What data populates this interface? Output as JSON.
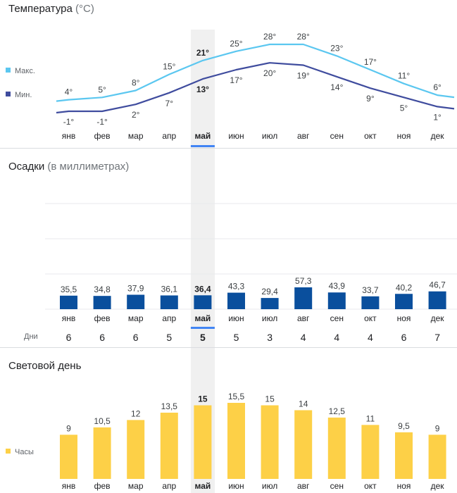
{
  "months": [
    "янв",
    "фев",
    "мар",
    "апр",
    "май",
    "июн",
    "июл",
    "авг",
    "сен",
    "окт",
    "ноя",
    "дек"
  ],
  "selected_index": 4,
  "colors": {
    "max_line": "#5bc7f0",
    "min_line": "#3f4c9e",
    "precip_bar": "#0a4f9d",
    "daylight_bar": "#fdd047",
    "highlight": "#f0f0f0",
    "selected_marker": "#4285f4",
    "text": "#202124",
    "muted": "#5f6368"
  },
  "temperature": {
    "title": "Температура",
    "unit": "(°C)",
    "legend_max": "Макс.",
    "legend_min": "Мин.",
    "max_labels": [
      "4°",
      "5°",
      "8°",
      "15°",
      "21°",
      "25°",
      "28°",
      "28°",
      "23°",
      "17°",
      "11°",
      "6°"
    ],
    "min_labels": [
      "-1°",
      "-1°",
      "2°",
      "7°",
      "13°",
      "17°",
      "20°",
      "19°",
      "14°",
      "9°",
      "5°",
      "1°"
    ]
  },
  "precipitation": {
    "title": "Осадки",
    "unit": "(в миллиметрах)",
    "labels": [
      "35,5",
      "34,8",
      "37,9",
      "36,1",
      "36,4",
      "43,3",
      "29,4",
      "57,3",
      "43,9",
      "33,7",
      "40,2",
      "46,7"
    ],
    "days_label": "Дни",
    "days": [
      "6",
      "6",
      "6",
      "5",
      "5",
      "5",
      "3",
      "4",
      "4",
      "4",
      "6",
      "7"
    ]
  },
  "daylight": {
    "title": "Световой день",
    "legend": "Часы",
    "labels": [
      "9",
      "10,5",
      "12",
      "13,5",
      "15",
      "15,5",
      "15",
      "14",
      "12,5",
      "11",
      "9,5",
      "9"
    ]
  },
  "chart_data": [
    {
      "type": "line",
      "title": "Температура (°C)",
      "categories": [
        "янв",
        "фев",
        "мар",
        "апр",
        "май",
        "июн",
        "июл",
        "авг",
        "сен",
        "окт",
        "ноя",
        "дек"
      ],
      "series": [
        {
          "name": "Макс.",
          "values": [
            4,
            5,
            8,
            15,
            21,
            25,
            28,
            28,
            23,
            17,
            11,
            6
          ]
        },
        {
          "name": "Мин.",
          "values": [
            -1,
            -1,
            2,
            7,
            13,
            17,
            20,
            19,
            14,
            9,
            5,
            1
          ]
        }
      ],
      "legend": "left"
    },
    {
      "type": "bar",
      "title": "Осадки (в миллиметрах)",
      "categories": [
        "янв",
        "фев",
        "мар",
        "апр",
        "май",
        "июн",
        "июл",
        "авг",
        "сен",
        "окт",
        "ноя",
        "дек"
      ],
      "values": [
        35.5,
        34.8,
        37.9,
        36.1,
        36.4,
        43.3,
        29.4,
        57.3,
        43.9,
        33.7,
        40.2,
        46.7
      ],
      "days": [
        6,
        6,
        6,
        5,
        5,
        5,
        3,
        4,
        4,
        4,
        6,
        7
      ],
      "grid": true
    },
    {
      "type": "bar",
      "title": "Световой день",
      "categories": [
        "янв",
        "фев",
        "мар",
        "апр",
        "май",
        "июн",
        "июл",
        "авг",
        "сен",
        "окт",
        "ноя",
        "дек"
      ],
      "series": [
        {
          "name": "Часы",
          "values": [
            9,
            10.5,
            12,
            13.5,
            15,
            15.5,
            15,
            14,
            12.5,
            11,
            9.5,
            9
          ]
        }
      ],
      "legend": "left"
    }
  ]
}
